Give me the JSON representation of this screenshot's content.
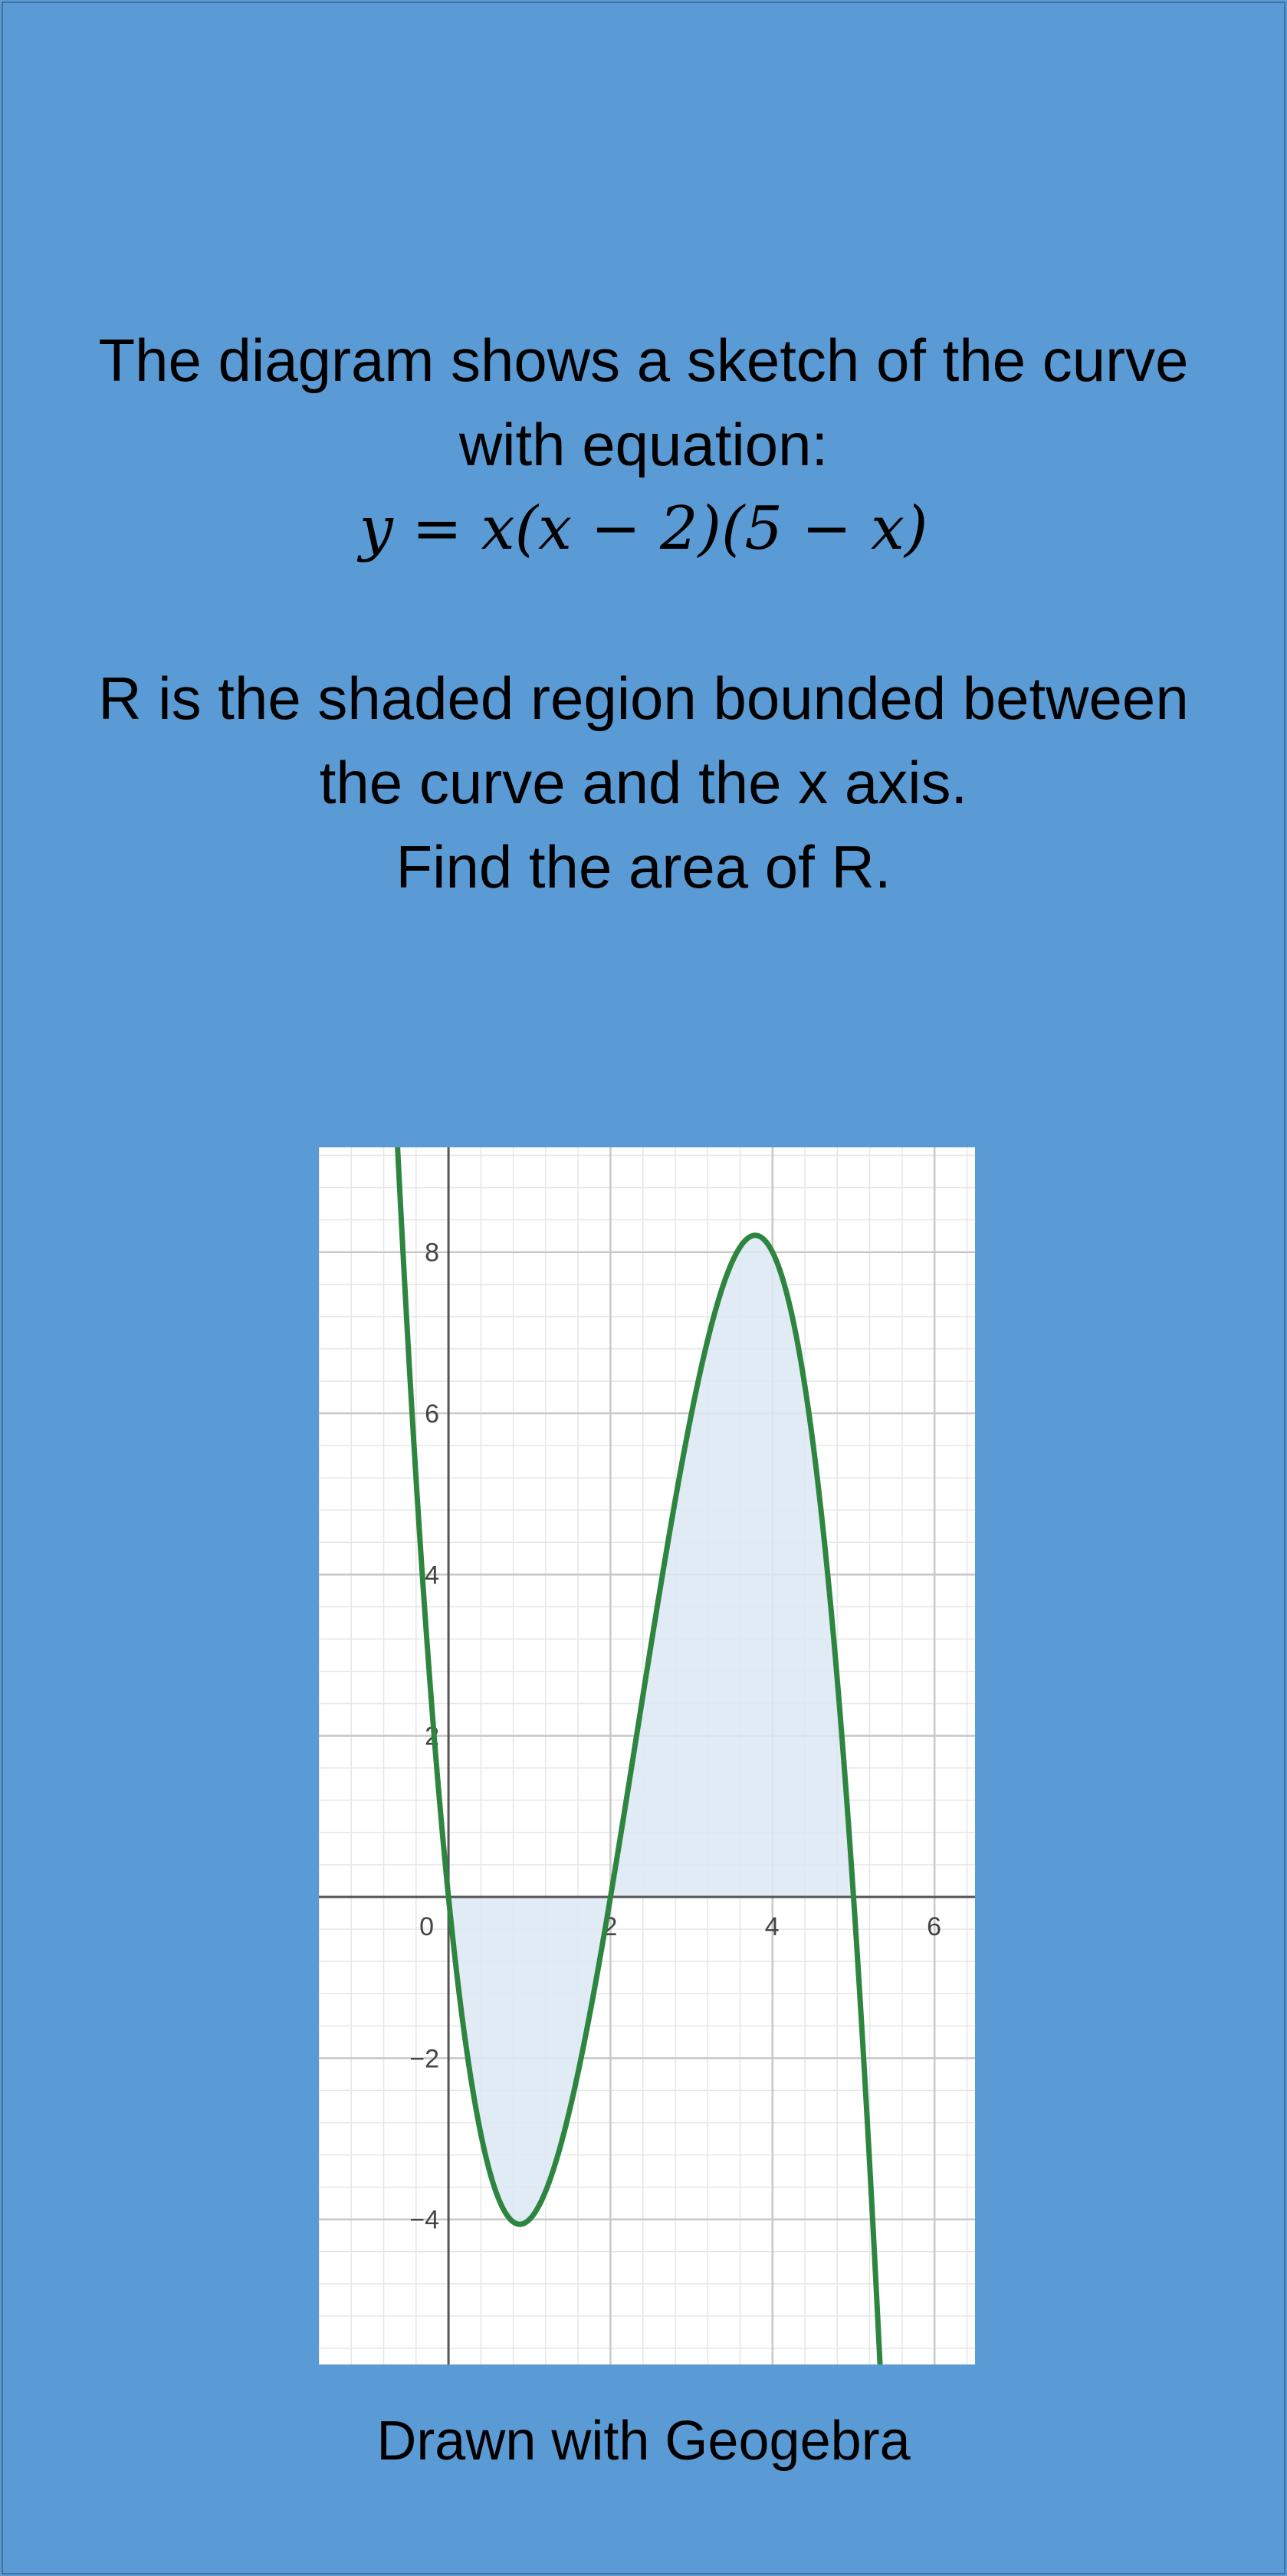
{
  "prompt": {
    "line1": "The diagram shows a sketch of the curve",
    "line2": "with equation:",
    "equation": "y = x(x − 2)(5 − x)",
    "line3": "R is the shaded region bounded between",
    "line4": "the curve and the x axis.",
    "line5": "Find the area of R."
  },
  "caption": "Drawn with Geogebra",
  "colors": {
    "background": "#5b9bd5",
    "curve": "#2e8540",
    "shade": "#dce7f5",
    "x_axis_line": "#4a7cc7",
    "grid_major": "#c8c8c8",
    "grid_minor": "#e6e6e6",
    "axis": "#555555"
  },
  "chart_data": {
    "type": "line",
    "function": "y = x(x - 2)(5 - x)",
    "xlim": [
      -1.6,
      6.5
    ],
    "ylim": [
      -5.8,
      9.3
    ],
    "x_ticks": [
      0,
      2,
      4,
      6
    ],
    "y_ticks": [
      -4,
      -2,
      2,
      4,
      6,
      8
    ],
    "x_tick_labels": [
      "0",
      "2",
      "4",
      "6"
    ],
    "y_tick_labels": [
      "−4",
      "−2",
      "2",
      "4",
      "6",
      "8"
    ],
    "shaded_intervals": [
      [
        0,
        2
      ],
      [
        2,
        5
      ]
    ],
    "grid": true
  }
}
